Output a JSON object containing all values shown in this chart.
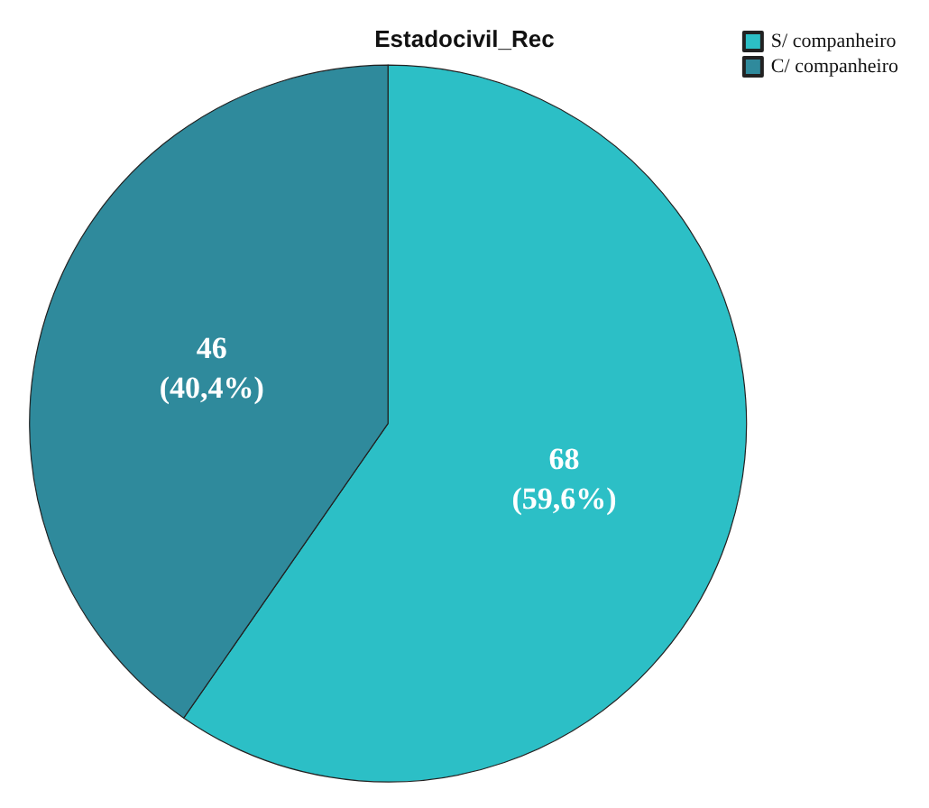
{
  "chart_data": {
    "type": "pie",
    "title": "Estadocivil_Rec",
    "categories": [
      "S/ companheiro",
      "C/ companheiro"
    ],
    "values": [
      68,
      46
    ],
    "colors": [
      "#2cbfc6",
      "#2f8a9c"
    ],
    "value_labels": [
      "68\n(59,6%)",
      "46\n(40,4%)"
    ],
    "legend": "top right"
  }
}
